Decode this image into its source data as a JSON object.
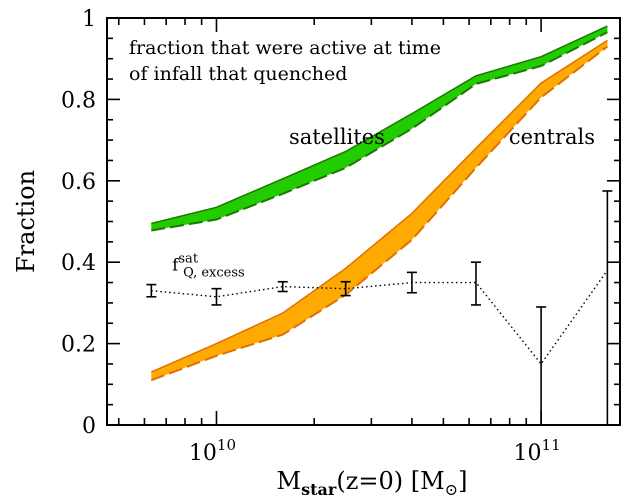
{
  "chart_data": {
    "type": "area",
    "title": "",
    "annotation_lines": [
      "fraction that were active at time",
      "of infall that quenched"
    ],
    "xlabel": {
      "main": "M",
      "sub": "star",
      "rest": "(z=0)  [M",
      "sun_symbol": "⊙",
      "close": "]"
    },
    "ylabel": "Fraction",
    "x_scale": "log",
    "xlim": [
      4600000000.0,
      175000000000.0
    ],
    "ylim": [
      0,
      1
    ],
    "x_ticks": [
      {
        "value": 10000000000.0,
        "base": "10",
        "exp": "10"
      },
      {
        "value": 100000000000.0,
        "base": "10",
        "exp": "11"
      }
    ],
    "y_ticks": [
      {
        "value": 0,
        "label": "0"
      },
      {
        "value": 0.2,
        "label": "0.2"
      },
      {
        "value": 0.4,
        "label": "0.4"
      },
      {
        "value": 0.6,
        "label": "0.6"
      },
      {
        "value": 0.8,
        "label": "0.8"
      },
      {
        "value": 1.0,
        "label": "1"
      }
    ],
    "series": [
      {
        "name": "satellites",
        "color": "#22cc00",
        "edge_color": "#1a7a00",
        "label_at": {
          "x": 23500000000.0,
          "y": 0.69
        },
        "x": [
          6300000000.0,
          10000000000.0,
          16000000000.0,
          25000000000.0,
          40000000000.0,
          63000000000.0,
          100000000000.0,
          160000000000.0
        ],
        "upper": [
          0.495,
          0.535,
          0.605,
          0.672,
          0.765,
          0.858,
          0.905,
          0.98
        ],
        "lower": [
          0.478,
          0.505,
          0.568,
          0.632,
          0.728,
          0.838,
          0.882,
          0.965
        ]
      },
      {
        "name": "centrals",
        "color": "#ffaa00",
        "edge_color": "#e07000",
        "label_at": {
          "x": 108000000000.0,
          "y": 0.69
        },
        "x": [
          6300000000.0,
          10000000000.0,
          16000000000.0,
          25000000000.0,
          40000000000.0,
          63000000000.0,
          100000000000.0,
          160000000000.0
        ],
        "upper": [
          0.13,
          0.2,
          0.275,
          0.385,
          0.52,
          0.68,
          0.84,
          0.945
        ],
        "lower": [
          0.11,
          0.17,
          0.222,
          0.32,
          0.455,
          0.632,
          0.805,
          0.93
        ]
      }
    ],
    "points": {
      "name": "f",
      "name_sup": "sat",
      "name_sub": "Q, excess",
      "label_at": {
        "x": 7300000000.0,
        "y": 0.38
      },
      "style": "dotted",
      "x": [
        6300000000.0,
        10000000000.0,
        16000000000.0,
        25000000000.0,
        40000000000.0,
        63000000000.0,
        100000000000.0,
        160000000000.0
      ],
      "y": [
        0.33,
        0.315,
        0.34,
        0.335,
        0.35,
        0.35,
        0.15,
        0.38
      ],
      "ylow": [
        0.315,
        0.295,
        0.328,
        0.318,
        0.325,
        0.295,
        0.0,
        0.0
      ],
      "yhigh": [
        0.345,
        0.335,
        0.352,
        0.352,
        0.375,
        0.4,
        0.29,
        0.575
      ]
    }
  }
}
